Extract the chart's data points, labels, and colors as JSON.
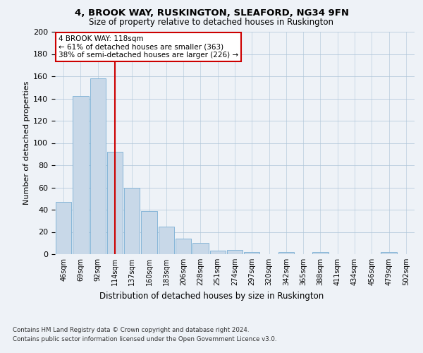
{
  "title1": "4, BROOK WAY, RUSKINGTON, SLEAFORD, NG34 9FN",
  "title2": "Size of property relative to detached houses in Ruskington",
  "xlabel": "Distribution of detached houses by size in Ruskington",
  "ylabel": "Number of detached properties",
  "categories": [
    "46sqm",
    "69sqm",
    "92sqm",
    "114sqm",
    "137sqm",
    "160sqm",
    "183sqm",
    "206sqm",
    "228sqm",
    "251sqm",
    "274sqm",
    "297sqm",
    "320sqm",
    "342sqm",
    "365sqm",
    "388sqm",
    "411sqm",
    "434sqm",
    "456sqm",
    "479sqm",
    "502sqm"
  ],
  "values": [
    47,
    142,
    158,
    92,
    60,
    39,
    25,
    14,
    10,
    3,
    4,
    2,
    0,
    2,
    0,
    2,
    0,
    0,
    0,
    2,
    0
  ],
  "bar_color": "#c8d8e8",
  "bar_edge_color": "#7aafd4",
  "ref_line_x": 3,
  "ref_line_color": "#cc0000",
  "annotation_text": "4 BROOK WAY: 118sqm\n← 61% of detached houses are smaller (363)\n38% of semi-detached houses are larger (226) →",
  "annotation_box_color": "#ffffff",
  "annotation_box_edge": "#cc0000",
  "ylim": [
    0,
    200
  ],
  "yticks": [
    0,
    20,
    40,
    60,
    80,
    100,
    120,
    140,
    160,
    180,
    200
  ],
  "footer1": "Contains HM Land Registry data © Crown copyright and database right 2024.",
  "footer2": "Contains public sector information licensed under the Open Government Licence v3.0.",
  "bg_color": "#eef2f7",
  "plot_bg_color": "#eef2f7"
}
